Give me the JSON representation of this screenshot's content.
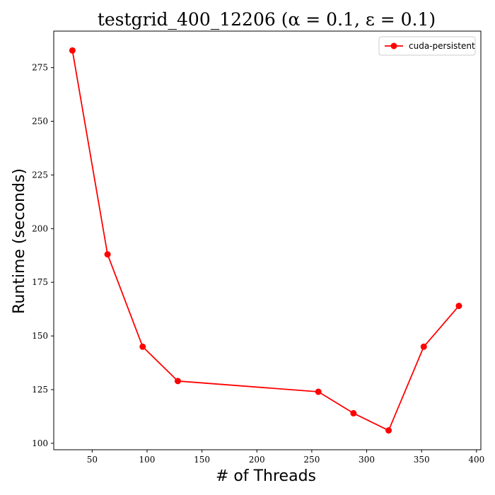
{
  "chart_data": {
    "type": "line",
    "title": "testgrid_400_12206 (α = 0.1, ε = 0.1)",
    "xlabel": "# of Threads",
    "ylabel": "Runtime (seconds)",
    "xlim": [
      15,
      404
    ],
    "ylim": [
      97,
      292
    ],
    "xticks": [
      50,
      100,
      150,
      200,
      250,
      300,
      350,
      400
    ],
    "yticks": [
      100,
      125,
      150,
      175,
      200,
      225,
      250,
      275
    ],
    "grid": false,
    "legend_position": "top-right",
    "series": [
      {
        "name": "cuda-persistent",
        "color": "#ff0000",
        "marker": "circle",
        "x": [
          32,
          64,
          96,
          128,
          256,
          288,
          320,
          352,
          384
        ],
        "y": [
          283,
          188,
          145,
          129,
          124,
          114,
          106,
          145,
          164
        ]
      }
    ]
  }
}
